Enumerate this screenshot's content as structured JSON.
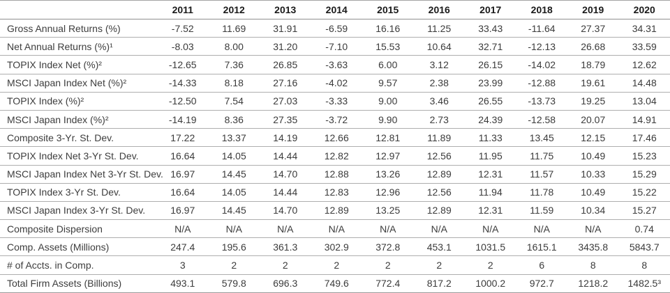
{
  "table": {
    "columns": [
      "",
      "2011",
      "2012",
      "2013",
      "2014",
      "2015",
      "2016",
      "2017",
      "2018",
      "2019",
      "2020"
    ],
    "rows": [
      {
        "label": "Gross Annual Returns (%)",
        "values": [
          "-7.52",
          "11.69",
          "31.91",
          "-6.59",
          "16.16",
          "11.25",
          "33.43",
          "-11.64",
          "27.37",
          "34.31"
        ]
      },
      {
        "label": "Net Annual Returns (%)¹",
        "values": [
          "-8.03",
          "8.00",
          "31.20",
          "-7.10",
          "15.53",
          "10.64",
          "32.71",
          "-12.13",
          "26.68",
          "33.59"
        ]
      },
      {
        "label": "TOPIX Index Net (%)²",
        "values": [
          "-12.65",
          "7.36",
          "26.85",
          "-3.63",
          "6.00",
          "3.12",
          "26.15",
          "-14.02",
          "18.79",
          "12.62"
        ]
      },
      {
        "label": "MSCI Japan Index Net (%)²",
        "values": [
          "-14.33",
          "8.18",
          "27.16",
          "-4.02",
          "9.57",
          "2.38",
          "23.99",
          "-12.88",
          "19.61",
          "14.48"
        ]
      },
      {
        "label": "TOPIX Index (%)²",
        "values": [
          "-12.50",
          "7.54",
          "27.03",
          "-3.33",
          "9.00",
          "3.46",
          "26.55",
          "-13.73",
          "19.25",
          "13.04"
        ]
      },
      {
        "label": "MSCI Japan Index (%)²",
        "values": [
          "-14.19",
          "8.36",
          "27.35",
          "-3.72",
          "9.90",
          "2.73",
          "24.39",
          "-12.58",
          "20.07",
          "14.91"
        ]
      },
      {
        "label": "Composite 3-Yr. St. Dev.",
        "values": [
          "17.22",
          "13.37",
          "14.19",
          "12.66",
          "12.81",
          "11.89",
          "11.33",
          "13.45",
          "12.15",
          "17.46"
        ]
      },
      {
        "label": "TOPIX Index Net 3-Yr St. Dev.",
        "values": [
          "16.64",
          "14.05",
          "14.44",
          "12.82",
          "12.97",
          "12.56",
          "11.95",
          "11.75",
          "10.49",
          "15.23"
        ]
      },
      {
        "label": "MSCI Japan Index Net 3-Yr St. Dev.",
        "values": [
          "16.97",
          "14.45",
          "14.70",
          "12.88",
          "13.26",
          "12.89",
          "12.31",
          "11.57",
          "10.33",
          "15.29"
        ]
      },
      {
        "label": "TOPIX Index 3-Yr St. Dev.",
        "values": [
          "16.64",
          "14.05",
          "14.44",
          "12.83",
          "12.96",
          "12.56",
          "11.94",
          "11.78",
          "10.49",
          "15.22"
        ]
      },
      {
        "label": "MSCI Japan Index 3-Yr St. Dev.",
        "values": [
          "16.97",
          "14.45",
          "14.70",
          "12.89",
          "13.25",
          "12.89",
          "12.31",
          "11.59",
          "10.34",
          "15.27"
        ]
      },
      {
        "label": "Composite Dispersion",
        "values": [
          "N/A",
          "N/A",
          "N/A",
          "N/A",
          "N/A",
          "N/A",
          "N/A",
          "N/A",
          "N/A",
          "0.74"
        ]
      },
      {
        "label": "Comp. Assets (Millions)",
        "values": [
          "247.4",
          "195.6",
          "361.3",
          "302.9",
          "372.8",
          "453.1",
          "1031.5",
          "1615.1",
          "3435.8",
          "5843.7"
        ]
      },
      {
        "label": "# of Accts. in Comp.",
        "values": [
          "3",
          "2",
          "2",
          "2",
          "2",
          "2",
          "2",
          "6",
          "8",
          "8"
        ]
      },
      {
        "label": "Total Firm Assets (Billions)",
        "values": [
          "493.1",
          "579.8",
          "696.3",
          "749.6",
          "772.4",
          "817.2",
          "1000.2",
          "972.7",
          "1218.2",
          "1482.5³"
        ]
      }
    ]
  },
  "colors": {
    "row_line": "#aeaeae",
    "header_line": "#8f8f8f",
    "text": "#3d3d3d",
    "header_text": "#1a1a1a",
    "background": "#ffffff"
  }
}
